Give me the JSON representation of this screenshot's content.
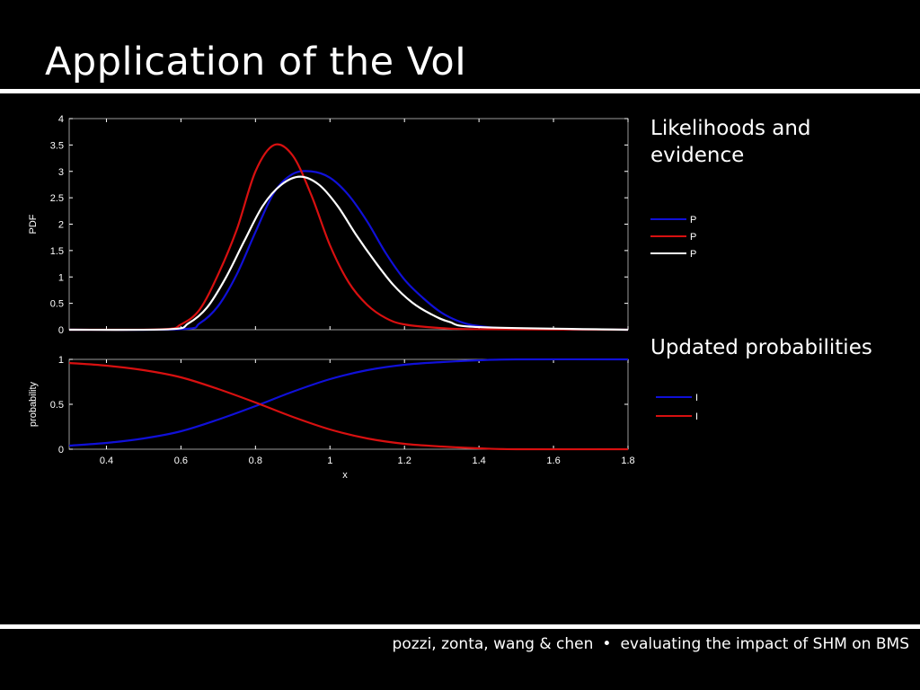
{
  "slide": {
    "title": "Application of the VoI",
    "side_label_top": "Likelihoods and evidence",
    "side_label_bottom": "Updated probabilities",
    "footer_authors": "pozzi, zonta, wang & chen",
    "footer_separator": "•",
    "footer_topic": "evaluating the impact of SHM on BMS"
  },
  "colors": {
    "blue": "#1010d8",
    "red": "#d81010",
    "white": "#ffffff",
    "axis": "#ffffff"
  },
  "chart_data": [
    {
      "type": "line",
      "ylabel": "PDF",
      "xlim": [
        0.3,
        1.8
      ],
      "ylim": [
        0,
        4
      ],
      "yticks": [
        0,
        0.5,
        1,
        1.5,
        2,
        2.5,
        3,
        3.5,
        4
      ],
      "ytick_labels": [
        "0",
        "0.5",
        "1",
        "1.5",
        "2",
        "2.5",
        "3",
        "3.5",
        "4"
      ],
      "legend": {
        "placement": "outside-right",
        "entries": [
          "P",
          "P",
          "P"
        ]
      },
      "series": [
        {
          "color": "blue",
          "x": [
            0.3,
            0.6,
            0.65,
            0.7,
            0.75,
            0.8,
            0.85,
            0.9,
            0.95,
            1.0,
            1.05,
            1.1,
            1.15,
            1.2,
            1.25,
            1.3,
            1.35,
            1.4,
            1.5,
            1.8
          ],
          "y": [
            0,
            0.01,
            0.12,
            0.45,
            1.05,
            1.85,
            2.6,
            2.95,
            3.0,
            2.88,
            2.55,
            2.05,
            1.45,
            0.95,
            0.6,
            0.32,
            0.15,
            0.07,
            0.02,
            0
          ]
        },
        {
          "color": "red",
          "x": [
            0.3,
            0.55,
            0.6,
            0.65,
            0.7,
            0.75,
            0.8,
            0.85,
            0.9,
            0.95,
            1.0,
            1.05,
            1.1,
            1.15,
            1.2,
            1.3,
            1.4,
            1.8
          ],
          "y": [
            0,
            0.01,
            0.1,
            0.38,
            1.05,
            1.9,
            3.0,
            3.5,
            3.3,
            2.55,
            1.6,
            0.9,
            0.47,
            0.22,
            0.1,
            0.03,
            0.01,
            0
          ]
        },
        {
          "color": "white",
          "x": [
            0.3,
            0.57,
            0.62,
            0.67,
            0.72,
            0.77,
            0.82,
            0.87,
            0.92,
            0.97,
            1.02,
            1.07,
            1.12,
            1.17,
            1.22,
            1.27,
            1.32,
            1.4,
            1.8
          ],
          "y": [
            0,
            0.01,
            0.12,
            0.42,
            0.98,
            1.68,
            2.35,
            2.75,
            2.9,
            2.75,
            2.35,
            1.8,
            1.3,
            0.85,
            0.52,
            0.3,
            0.15,
            0.05,
            0
          ]
        }
      ]
    },
    {
      "type": "line",
      "ylabel": "probability",
      "xlabel": "x",
      "xlim": [
        0.3,
        1.8
      ],
      "ylim": [
        0,
        1
      ],
      "xticks": [
        0.4,
        0.6,
        0.8,
        1,
        1.2,
        1.4,
        1.6,
        1.8
      ],
      "xtick_labels": [
        "0.4",
        "0.6",
        "0.8",
        "1",
        "1.2",
        "1.4",
        "1.6",
        "1.8"
      ],
      "yticks": [
        0,
        0.5,
        1
      ],
      "ytick_labels": [
        "0",
        "0.5",
        "1"
      ],
      "legend": {
        "placement": "outside-right",
        "entries": [
          "I",
          "I"
        ]
      },
      "series": [
        {
          "color": "blue",
          "x": [
            0.3,
            0.4,
            0.5,
            0.6,
            0.7,
            0.8,
            0.9,
            1.0,
            1.1,
            1.2,
            1.3,
            1.4,
            1.5,
            1.8
          ],
          "y": [
            0.04,
            0.07,
            0.12,
            0.2,
            0.33,
            0.48,
            0.64,
            0.78,
            0.88,
            0.94,
            0.97,
            0.99,
            1.0,
            1.0
          ]
        },
        {
          "color": "red",
          "x": [
            0.3,
            0.4,
            0.5,
            0.6,
            0.7,
            0.8,
            0.9,
            1.0,
            1.1,
            1.2,
            1.3,
            1.4,
            1.5,
            1.8
          ],
          "y": [
            0.96,
            0.93,
            0.88,
            0.8,
            0.67,
            0.52,
            0.36,
            0.22,
            0.12,
            0.06,
            0.03,
            0.01,
            0.0,
            0.0
          ]
        }
      ]
    }
  ]
}
